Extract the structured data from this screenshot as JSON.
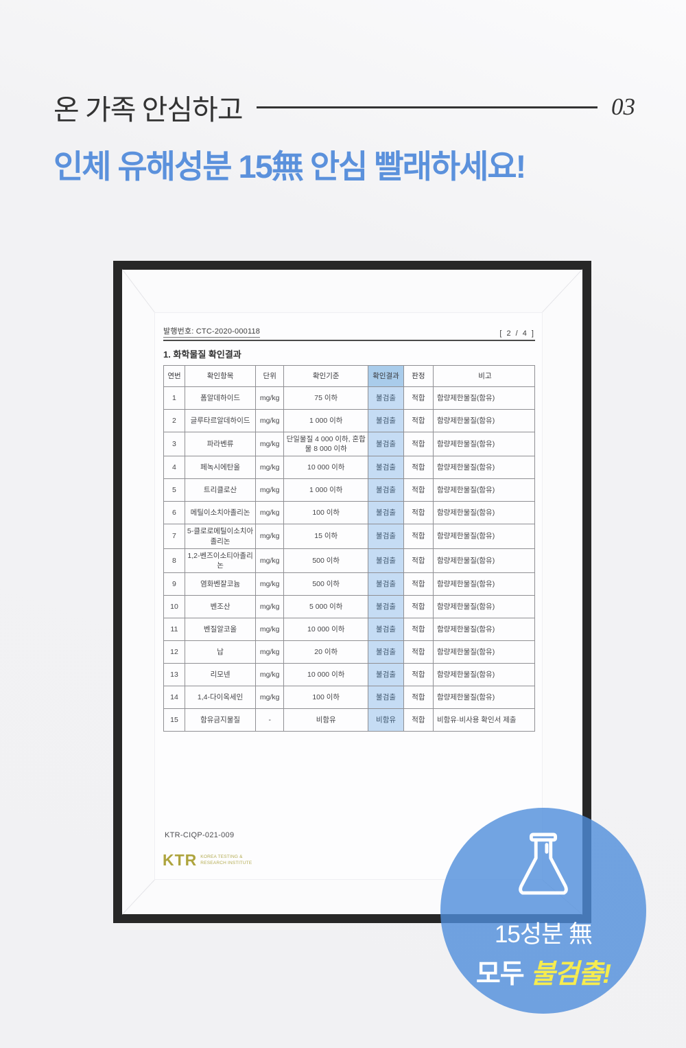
{
  "header": {
    "subtitle": "온 가족 안심하고",
    "page_number": "03",
    "title": "인체 유해성분 15無 안심 빨래하세요!",
    "title_color": "#5b91dc"
  },
  "document": {
    "issue_label": "발행번호: CTC-2020-000118",
    "page_indicator": "[ 2 / 4 ]",
    "section_title": "1. 화학물질 확인결과",
    "table": {
      "headers": [
        "연번",
        "확인항목",
        "단위",
        "확인기준",
        "확인결과",
        "판정",
        "비고"
      ],
      "highlight_column": 4,
      "highlight_header_color": "#a9cceb",
      "highlight_cell_color": "#c5dcf4",
      "rows": [
        [
          "1",
          "폼알데하이드",
          "mg/kg",
          "75 이하",
          "불검출",
          "적합",
          "함량제한물질(함유)"
        ],
        [
          "2",
          "글루타르알데하이드",
          "mg/kg",
          "1 000 이하",
          "불검출",
          "적합",
          "함량제한물질(함유)"
        ],
        [
          "3",
          "파라벤류",
          "mg/kg",
          "단일물질 4 000 이하, 혼합물 8 000 이하",
          "불검출",
          "적합",
          "함량제한물질(함유)"
        ],
        [
          "4",
          "페녹시에탄올",
          "mg/kg",
          "10 000 이하",
          "불검출",
          "적합",
          "함량제한물질(함유)"
        ],
        [
          "5",
          "트리클로산",
          "mg/kg",
          "1 000 이하",
          "불검출",
          "적합",
          "함량제한물질(함유)"
        ],
        [
          "6",
          "메틸이소치아졸리논",
          "mg/kg",
          "100 이하",
          "불검출",
          "적합",
          "함량제한물질(함유)"
        ],
        [
          "7",
          "5-클로로메틸이소치아졸리논",
          "mg/kg",
          "15 이하",
          "불검출",
          "적합",
          "함량제한물질(함유)"
        ],
        [
          "8",
          "1,2-벤즈이소티아졸리논",
          "mg/kg",
          "500 이하",
          "불검출",
          "적합",
          "함량제한물질(함유)"
        ],
        [
          "9",
          "염화벤잘코늄",
          "mg/kg",
          "500 이하",
          "불검출",
          "적합",
          "함량제한물질(함유)"
        ],
        [
          "10",
          "벤조산",
          "mg/kg",
          "5 000 이하",
          "불검출",
          "적합",
          "함량제한물질(함유)"
        ],
        [
          "11",
          "벤질알코올",
          "mg/kg",
          "10 000 이하",
          "불검출",
          "적합",
          "함량제한물질(함유)"
        ],
        [
          "12",
          "납",
          "mg/kg",
          "20 이하",
          "불검출",
          "적합",
          "함량제한물질(함유)"
        ],
        [
          "13",
          "리모넨",
          "mg/kg",
          "10 000 이하",
          "불검출",
          "적합",
          "함량제한물질(함유)"
        ],
        [
          "14",
          "1,4-다이옥세인",
          "mg/kg",
          "100 이하",
          "불검출",
          "적합",
          "함량제한물질(함유)"
        ],
        [
          "15",
          "함유금지물질",
          "-",
          "비함유",
          "비함유",
          "적합",
          "비함유·비사용 확인서 제출"
        ]
      ]
    },
    "footer_code": "KTR-CIQP-021-009",
    "logo": {
      "text": "KTR",
      "sub_line1": "KOREA TESTING &",
      "sub_line2": "RESEARCH INSTITUTE",
      "color": "#aea43e"
    }
  },
  "badge": {
    "line1": "15성분 無",
    "line2_prefix": "모두 ",
    "line2_highlight": "불검출!",
    "circle_color": "#4f8ddb",
    "highlight_color": "#f6ec4f"
  }
}
